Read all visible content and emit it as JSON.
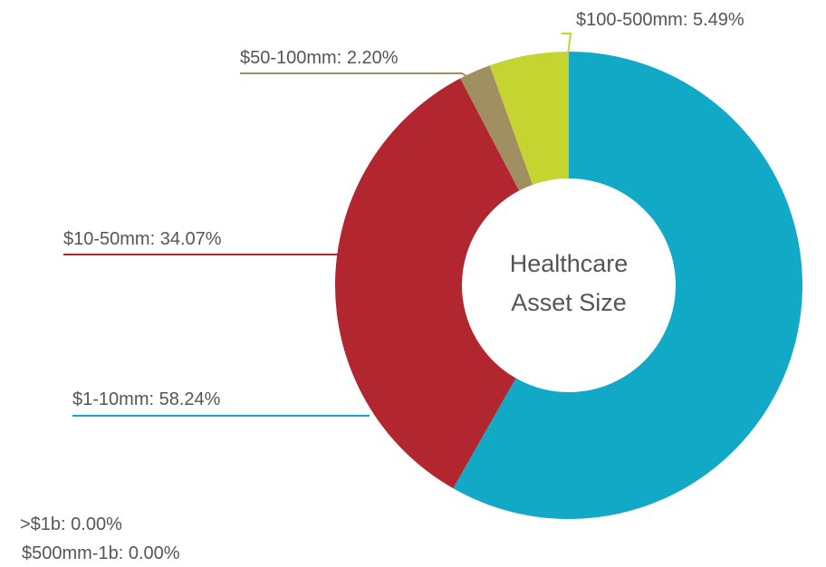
{
  "chart_data": {
    "type": "donut",
    "title": [
      "Healthcare",
      "Asset Size"
    ],
    "values": [
      58.24,
      34.07,
      2.2,
      5.49,
      0.0,
      0.0
    ],
    "value_labels": [
      "$1-10mm: 58.24%",
      "$10-50mm: 34.07%",
      "$50-100mm: 2.20%",
      "$100-500mm: 5.49%",
      ">$1b: 0.00%",
      "$500mm-1b: 0.00%"
    ],
    "colors": [
      "#12a9c7",
      "#b1262f",
      "#a08f61",
      "#c6d431",
      "#7f7f7f",
      "#4f4f4f"
    ]
  }
}
